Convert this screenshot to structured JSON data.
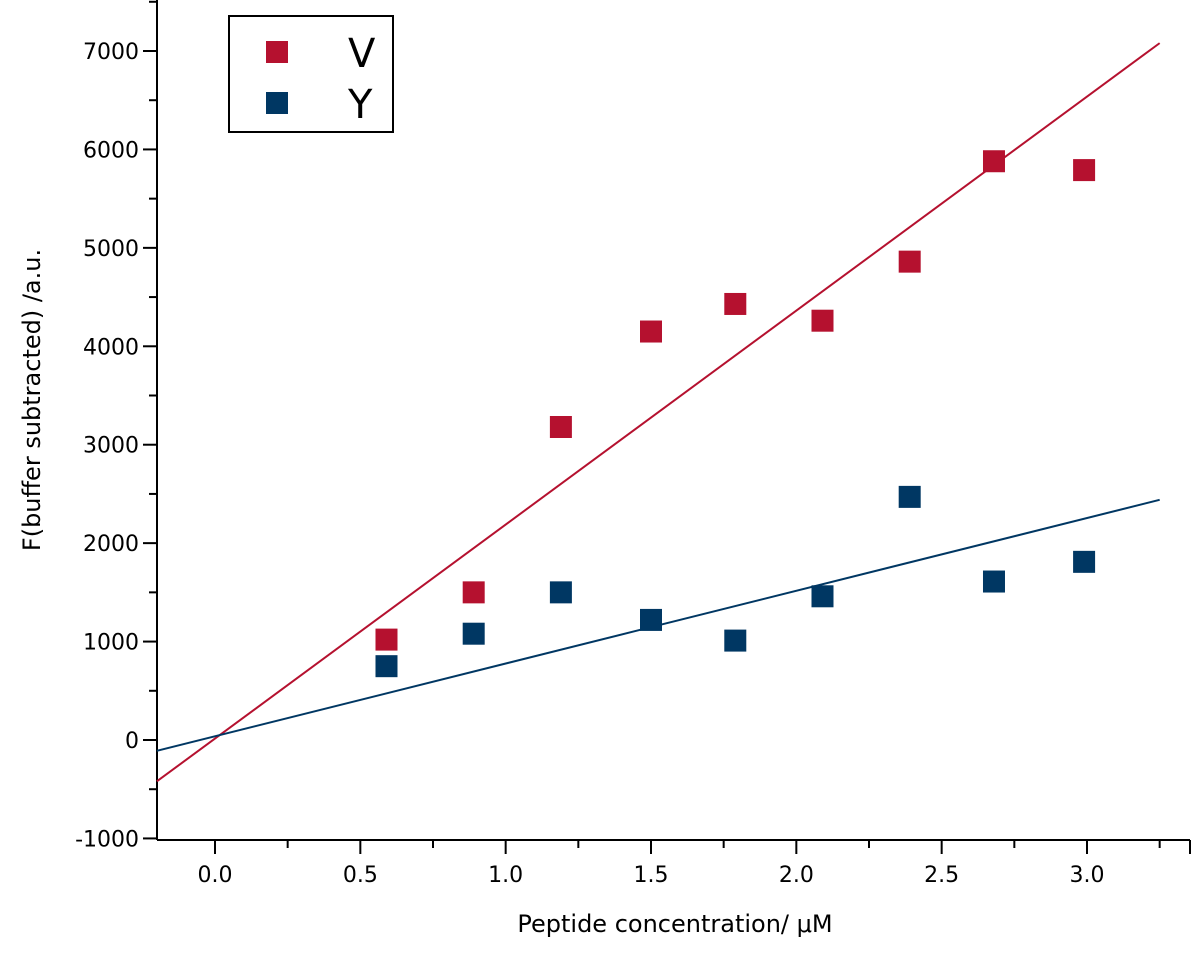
{
  "chart_data": {
    "type": "scatter",
    "xlabel": "Peptide concentration/ μM",
    "ylabel": "F(buffer subtracted) /a.u.",
    "xlim": [
      -0.2,
      3.6
    ],
    "ylim": [
      -1000,
      7500
    ],
    "x_ticks": [
      0.0,
      0.5,
      1.0,
      1.5,
      2.0,
      2.5,
      3.0
    ],
    "x_tick_labels": [
      "0.0",
      "0.5",
      "1.0",
      "1.5",
      "2.0",
      "2.5",
      "3.0"
    ],
    "y_ticks": [
      -1000,
      0,
      1000,
      2000,
      3000,
      4000,
      5000,
      6000,
      7000
    ],
    "y_tick_labels": [
      "-1000",
      "0",
      "1000",
      "2000",
      "3000",
      "4000",
      "5000",
      "6000",
      "7000"
    ],
    "grid": false,
    "legend_position": "top-left",
    "series": [
      {
        "name": "V",
        "color": "#b5112f",
        "marker": "square",
        "x": [
          0.59,
          0.89,
          1.19,
          1.5,
          1.79,
          2.09,
          2.39,
          2.68,
          2.99
        ],
        "y": [
          1020,
          1500,
          3180,
          4150,
          4430,
          4260,
          4860,
          5880,
          5790
        ],
        "fit": {
          "x": [
            -0.2,
            3.25
          ],
          "y": [
            -420,
            7080
          ]
        }
      },
      {
        "name": "Y",
        "color": "#003763",
        "marker": "square",
        "x": [
          0.59,
          0.89,
          1.19,
          1.5,
          1.79,
          2.09,
          2.39,
          2.68,
          2.99
        ],
        "y": [
          750,
          1080,
          1500,
          1220,
          1010,
          1460,
          2470,
          1610,
          1810
        ],
        "fit": {
          "x": [
            -0.2,
            3.25
          ],
          "y": [
            -110,
            2440
          ]
        }
      }
    ]
  }
}
